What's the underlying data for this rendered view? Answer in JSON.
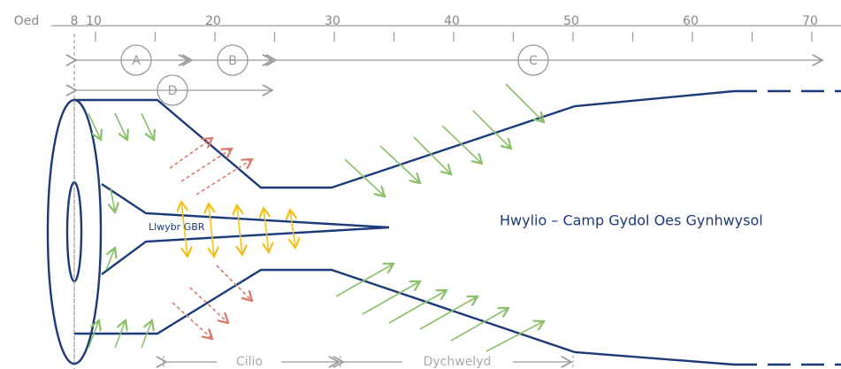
{
  "axis": {
    "label": "Oed",
    "ticks": [
      8,
      10,
      20,
      30,
      40,
      50,
      60,
      70
    ]
  },
  "phases": [
    {
      "label": "A"
    },
    {
      "label": "B"
    },
    {
      "label": "C"
    },
    {
      "label": "D"
    }
  ],
  "pathway_label": "Llwybr GBR",
  "title": "Hwylio – Camp Gydol Oes Gynhwysol",
  "bottom_labels": [
    "Cilio",
    "Dychwelyd"
  ]
}
